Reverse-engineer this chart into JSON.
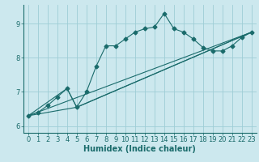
{
  "bg_color": "#cce8ee",
  "grid_color": "#9ecdd6",
  "line_color": "#1a6b6b",
  "xlabel": "Humidex (Indice chaleur)",
  "xlabel_fontsize": 7,
  "tick_fontsize": 6,
  "xlim": [
    -0.5,
    23.5
  ],
  "ylim": [
    5.8,
    9.55
  ],
  "yticks": [
    6,
    7,
    8,
    9
  ],
  "xticks": [
    0,
    1,
    2,
    3,
    4,
    5,
    6,
    7,
    8,
    9,
    10,
    11,
    12,
    13,
    14,
    15,
    16,
    17,
    18,
    19,
    20,
    21,
    22,
    23
  ],
  "main_line_x": [
    0,
    1,
    2,
    3,
    4,
    5,
    6,
    7,
    8,
    9,
    10,
    11,
    12,
    13,
    14,
    15,
    16,
    17,
    18,
    19,
    20,
    21,
    22,
    23
  ],
  "main_line_y": [
    6.3,
    6.4,
    6.6,
    6.85,
    7.1,
    6.55,
    7.0,
    7.75,
    8.35,
    8.35,
    8.55,
    8.75,
    8.85,
    8.9,
    9.3,
    8.85,
    8.75,
    8.55,
    8.3,
    8.2,
    8.2,
    8.35,
    8.6,
    8.75
  ],
  "line2_x": [
    0,
    23
  ],
  "line2_y": [
    6.3,
    8.75
  ],
  "line3_x": [
    0,
    5,
    23
  ],
  "line3_y": [
    6.3,
    6.55,
    8.75
  ],
  "line4_x": [
    0,
    4,
    5,
    23
  ],
  "line4_y": [
    6.3,
    7.1,
    6.55,
    8.75
  ]
}
